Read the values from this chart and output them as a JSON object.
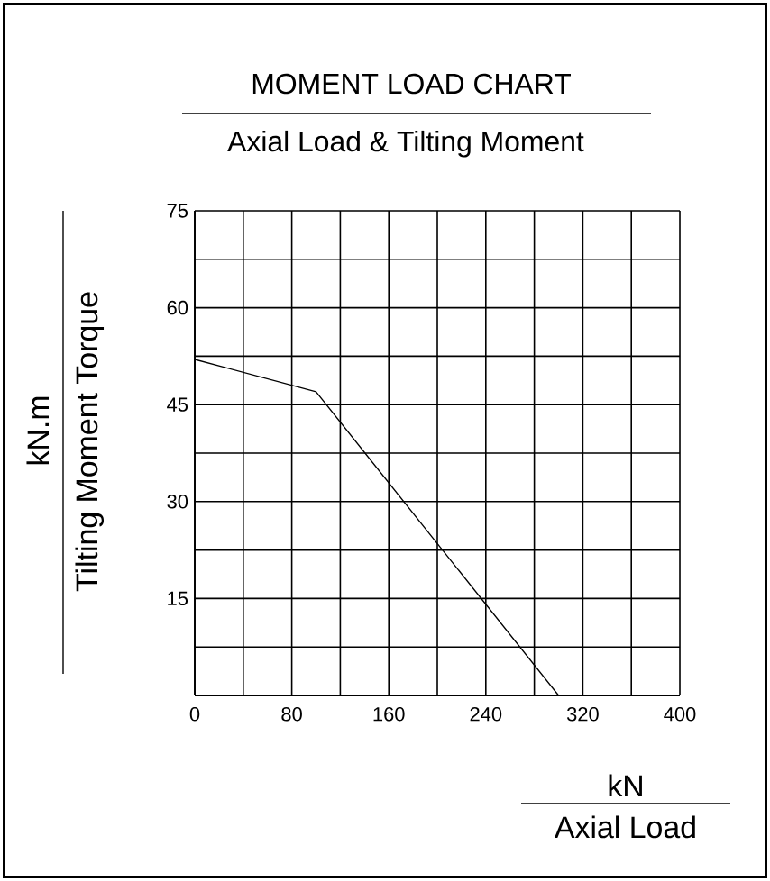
{
  "chart_data": {
    "type": "line",
    "title": "MOMENT LOAD CHART",
    "subtitle": "Axial Load & Tilting Moment",
    "xlabel": "Axial Load",
    "ylabel": "Tilting Moment Torque",
    "annotations": [
      "kN",
      "kN.m"
    ],
    "x": [
      0,
      100,
      300
    ],
    "values": [
      52,
      47,
      0
    ],
    "color": "#000000",
    "xlim": [
      0,
      400
    ],
    "ylim": [
      0,
      75
    ],
    "xticks": [
      0,
      {
        "value": 40,
        "label": null
      },
      80,
      {
        "value": 120,
        "label": null
      },
      160,
      {
        "value": 200,
        "label": null
      },
      240,
      {
        "value": 280,
        "label": null
      },
      320,
      {
        "value": 360,
        "label": null
      },
      400
    ],
    "yticks": [
      {
        "value": 7.5,
        "label": null
      },
      15,
      {
        "value": 22.5,
        "label": null
      },
      30,
      {
        "value": 37.5,
        "label": null
      },
      45,
      {
        "value": 52.5,
        "label": null
      },
      60,
      {
        "value": 67.5,
        "label": null
      },
      75
    ],
    "grid": true
  }
}
